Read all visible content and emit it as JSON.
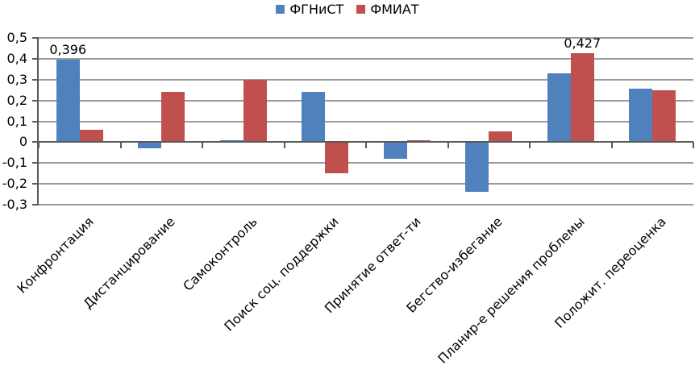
{
  "chart_data": {
    "type": "bar",
    "title": "",
    "categories": [
      "Конфронтация",
      "Дистанцирование",
      "Самоконтроль",
      "Поиск соц. поддержки",
      "Принятие ответ-ти",
      "Бегство-избегание",
      "Планир-е решения проблемы",
      "Положит. переоценка"
    ],
    "series": [
      {
        "name": "ФГНиСТ",
        "color": "#4F81BD",
        "values": [
          0.396,
          -0.03,
          0.01,
          0.24,
          -0.08,
          -0.24,
          0.33,
          0.255
        ]
      },
      {
        "name": "ФМИАТ",
        "color": "#C0504D",
        "values": [
          0.06,
          0.24,
          0.3,
          -0.15,
          0.01,
          0.05,
          0.427,
          0.25
        ]
      }
    ],
    "data_labels": [
      {
        "series": 0,
        "category": 0,
        "text": "0,396"
      },
      {
        "series": 1,
        "category": 6,
        "text": "0,427"
      }
    ],
    "y_axis": {
      "min": -0.3,
      "max": 0.5,
      "step": 0.1,
      "tick_labels": [
        "0,5",
        "0,4",
        "0,3",
        "0,2",
        "0,1",
        "0",
        "-0,1",
        "-0,2",
        "-0,3"
      ]
    },
    "x_axis": {
      "label_rotation_deg": 45
    },
    "legend_position": "top",
    "grid": true,
    "colors": {
      "gridline": "#9a9a9a",
      "axis": "#595959",
      "text": "#000000",
      "background": "#ffffff"
    }
  }
}
